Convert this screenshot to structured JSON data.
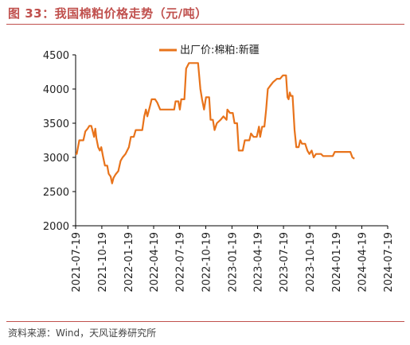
{
  "title": "图 33：我国棉粕价格走势（元/吨）",
  "source": "资料来源：Wind，天风证券研究所",
  "colors": {
    "line": "#e8731b",
    "accent": "#c0504d",
    "axis": "#000000"
  },
  "chart_data": {
    "type": "line",
    "title": "",
    "xlabel": "",
    "ylabel": "",
    "ylim": [
      2000,
      4500
    ],
    "yticks": [
      2000,
      2500,
      3000,
      3500,
      4000,
      4500
    ],
    "xlim": [
      "2021-07-19",
      "2024-07-19"
    ],
    "xticks": [
      "2021-07-19",
      "2021-10-19",
      "2022-01-19",
      "2022-04-19",
      "2022-07-19",
      "2022-10-19",
      "2023-01-19",
      "2023-04-19",
      "2023-07-19",
      "2023-10-19",
      "2024-01-19",
      "2024-04-19",
      "2024-07-19"
    ],
    "grid": false,
    "legend": "top-center",
    "series": [
      {
        "name": "出厂价:棉粕:新疆",
        "points": [
          [
            "2021-07-19",
            3050
          ],
          [
            "2021-07-23",
            3050
          ],
          [
            "2021-07-26",
            3120
          ],
          [
            "2021-08-01",
            3250
          ],
          [
            "2021-08-15",
            3250
          ],
          [
            "2021-08-22",
            3380
          ],
          [
            "2021-08-30",
            3420
          ],
          [
            "2021-09-05",
            3460
          ],
          [
            "2021-09-12",
            3460
          ],
          [
            "2021-09-17",
            3380
          ],
          [
            "2021-09-22",
            3300
          ],
          [
            "2021-09-26",
            3420
          ],
          [
            "2021-09-30",
            3280
          ],
          [
            "2021-10-06",
            3150
          ],
          [
            "2021-10-12",
            3100
          ],
          [
            "2021-10-17",
            3150
          ],
          [
            "2021-10-23",
            3020
          ],
          [
            "2021-10-30",
            2880
          ],
          [
            "2021-11-07",
            2880
          ],
          [
            "2021-11-12",
            2760
          ],
          [
            "2021-11-19",
            2720
          ],
          [
            "2021-11-24",
            2620
          ],
          [
            "2021-11-29",
            2700
          ],
          [
            "2021-12-06",
            2750
          ],
          [
            "2021-12-16",
            2800
          ],
          [
            "2021-12-24",
            2950
          ],
          [
            "2021-12-31",
            3000
          ],
          [
            "2022-01-10",
            3050
          ],
          [
            "2022-01-22",
            3150
          ],
          [
            "2022-01-29",
            3300
          ],
          [
            "2022-02-08",
            3300
          ],
          [
            "2022-02-15",
            3400
          ],
          [
            "2022-03-10",
            3400
          ],
          [
            "2022-03-17",
            3600
          ],
          [
            "2022-03-23",
            3700
          ],
          [
            "2022-03-28",
            3600
          ],
          [
            "2022-04-06",
            3750
          ],
          [
            "2022-04-12",
            3850
          ],
          [
            "2022-04-24",
            3850
          ],
          [
            "2022-05-02",
            3800
          ],
          [
            "2022-05-12",
            3700
          ],
          [
            "2022-06-30",
            3700
          ],
          [
            "2022-07-05",
            3820
          ],
          [
            "2022-07-15",
            3820
          ],
          [
            "2022-07-20",
            3700
          ],
          [
            "2022-07-25",
            3850
          ],
          [
            "2022-08-05",
            3850
          ],
          [
            "2022-08-11",
            4300
          ],
          [
            "2022-08-21",
            4380
          ],
          [
            "2022-09-22",
            4380
          ],
          [
            "2022-09-30",
            4000
          ],
          [
            "2022-10-06",
            3850
          ],
          [
            "2022-10-13",
            3700
          ],
          [
            "2022-10-20",
            3880
          ],
          [
            "2022-10-31",
            3880
          ],
          [
            "2022-11-05",
            3550
          ],
          [
            "2022-11-13",
            3550
          ],
          [
            "2022-11-19",
            3400
          ],
          [
            "2022-11-27",
            3500
          ],
          [
            "2022-12-10",
            3550
          ],
          [
            "2022-12-20",
            3600
          ],
          [
            "2022-12-31",
            3550
          ],
          [
            "2023-01-03",
            3700
          ],
          [
            "2023-01-12",
            3650
          ],
          [
            "2023-01-22",
            3650
          ],
          [
            "2023-01-28",
            3500
          ],
          [
            "2023-02-06",
            3500
          ],
          [
            "2023-02-12",
            3100
          ],
          [
            "2023-02-26",
            3100
          ],
          [
            "2023-03-05",
            3250
          ],
          [
            "2023-03-21",
            3250
          ],
          [
            "2023-03-27",
            3350
          ],
          [
            "2023-04-05",
            3300
          ],
          [
            "2023-04-16",
            3300
          ],
          [
            "2023-04-24",
            3450
          ],
          [
            "2023-04-28",
            3300
          ],
          [
            "2023-05-05",
            3450
          ],
          [
            "2023-05-13",
            3450
          ],
          [
            "2023-05-19",
            3700
          ],
          [
            "2023-05-25",
            4000
          ],
          [
            "2023-06-03",
            4050
          ],
          [
            "2023-06-12",
            4100
          ],
          [
            "2023-06-26",
            4150
          ],
          [
            "2023-07-07",
            4150
          ],
          [
            "2023-07-17",
            4200
          ],
          [
            "2023-07-28",
            4200
          ],
          [
            "2023-08-02",
            3880
          ],
          [
            "2023-08-06",
            3850
          ],
          [
            "2023-08-10",
            3950
          ],
          [
            "2023-08-14",
            3900
          ],
          [
            "2023-08-20",
            3900
          ],
          [
            "2023-08-27",
            3400
          ],
          [
            "2023-09-02",
            3150
          ],
          [
            "2023-09-10",
            3150
          ],
          [
            "2023-09-16",
            3250
          ],
          [
            "2023-09-22",
            3200
          ],
          [
            "2023-10-03",
            3200
          ],
          [
            "2023-10-11",
            3100
          ],
          [
            "2023-10-18",
            3050
          ],
          [
            "2023-10-26",
            3100
          ],
          [
            "2023-11-02",
            3000
          ],
          [
            "2023-11-10",
            3050
          ],
          [
            "2023-11-28",
            3050
          ],
          [
            "2023-12-05",
            3020
          ],
          [
            "2024-01-08",
            3020
          ],
          [
            "2024-01-15",
            3080
          ],
          [
            "2024-03-10",
            3080
          ],
          [
            "2024-03-17",
            3000
          ],
          [
            "2024-03-24",
            2980
          ]
        ]
      }
    ]
  }
}
